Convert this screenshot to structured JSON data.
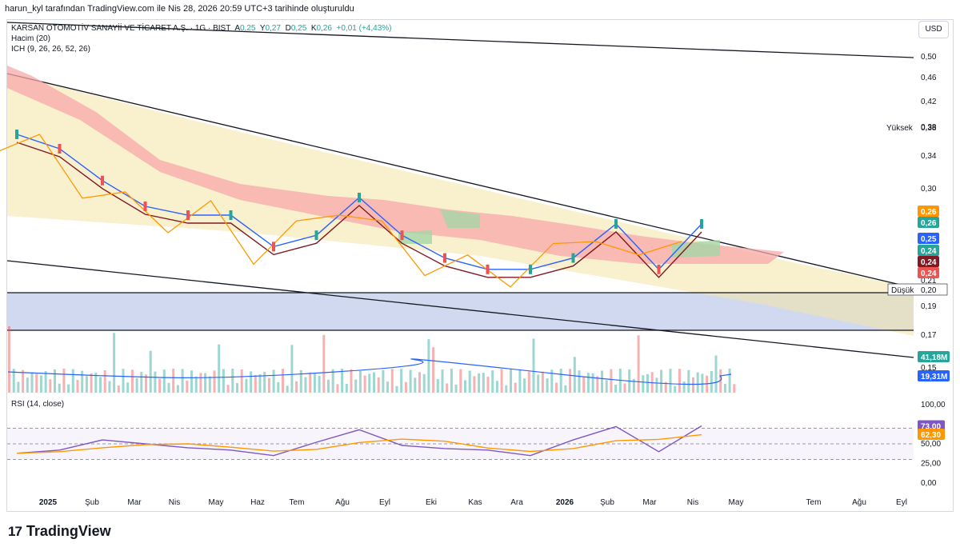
{
  "header": "harun_kyl tarafından TradingView.com ile Nis 28, 2026 20:59 UTC+3 tarihinde oluşturuldu",
  "symbol_line": {
    "name": "KARSAN OTOMOTİV SANAYİİ VE TİCARET A.Ş. · 1G · BIST",
    "open_label": "A",
    "open": "0,25",
    "high_label": "Y",
    "high": "0,27",
    "low_label": "D",
    "low": "0,25",
    "close_label": "K",
    "close": "0,26",
    "change": "+0,01 (+4,43%)"
  },
  "indicators": [
    "Hacim (20)",
    "ICH (9, 26, 26, 52, 26)"
  ],
  "rsi_label": "RSI (14, close)",
  "currency_button": "USD",
  "brand": "TradingView",
  "colors": {
    "up": "#26a69a",
    "down": "#ef5350",
    "tenkan": "#2962ff",
    "kijun": "#801922",
    "chikou": "#ff9800",
    "rsi": "#7e57c2",
    "rsi_ma": "#ff9800",
    "kumo_bear": "#f7a8a8",
    "kumo_bull": "#a5d6a7",
    "band": "#f4e4a6",
    "support_box": "#c8d2ec"
  },
  "chart_data": [
    {
      "type": "line",
      "title": "",
      "x_ticks": [
        "2025",
        "Şub",
        "Mar",
        "Nis",
        "May",
        "Haz",
        "Tem",
        "Ağu",
        "Eyl",
        "Eki",
        "Kas",
        "Ara",
        "2026",
        "Şub",
        "Mar",
        "Nis",
        "May",
        "Tem",
        "Ağu",
        "Eyl"
      ],
      "y_ticks": [
        "0,50",
        "0,46",
        "0,42",
        "0,38",
        "0,34",
        "0,30",
        "0,26",
        "0,21",
        "0,19",
        "0,17",
        "0,15"
      ],
      "ylim": [
        0.14,
        0.52
      ],
      "y_scale": "log",
      "price_markers": [
        {
          "label": "Yüksek",
          "value": "0,38"
        },
        {
          "label": "Düşük",
          "value": "0,20"
        }
      ],
      "price_badges": [
        {
          "value": "0,26",
          "color": "#ff9800"
        },
        {
          "value": "0,26",
          "color": "#26a69a"
        },
        {
          "value": "0,25",
          "color": "#2962ff"
        },
        {
          "value": "0,24",
          "color": "#26a69a"
        },
        {
          "value": "0,24",
          "color": "#801922"
        },
        {
          "value": "0,24",
          "color": "#ef5350"
        }
      ],
      "series": [
        {
          "values_by_month": [
            0.37,
            0.35,
            0.31,
            0.28,
            0.27,
            0.27,
            0.24,
            0.25,
            0.29,
            0.25,
            0.23,
            0.22,
            0.22,
            0.23,
            0.26,
            0.22,
            0.26
          ]
        }
      ]
    },
    {
      "type": "bar",
      "title": "Hacim (20)",
      "badges": [
        {
          "value": "41,18M",
          "color": "#26a69a"
        },
        {
          "value": "19,31M",
          "color": "#2962ff"
        }
      ]
    },
    {
      "type": "line",
      "title": "RSI (14, close)",
      "y_ticks": [
        "100,00",
        "50,00",
        "25,00",
        "0,00"
      ],
      "ylim": [
        0,
        100
      ],
      "levels": [
        70,
        50,
        30
      ],
      "badges": [
        {
          "value": "73,00",
          "color": "#7e57c2"
        },
        {
          "value": "62,30",
          "color": "#ff9800"
        }
      ],
      "series": [
        {
          "values_by_month": [
            38,
            42,
            55,
            50,
            45,
            42,
            35,
            52,
            68,
            48,
            44,
            42,
            35,
            55,
            72,
            40,
            73
          ]
        }
      ]
    }
  ]
}
